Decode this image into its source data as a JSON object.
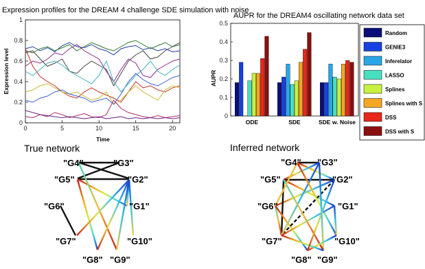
{
  "chart_data": [
    {
      "type": "line",
      "title": "Expression profiles for the DREAM 4 challenge SDE simulation with noise",
      "xlabel": "Time",
      "ylabel": "Expression level",
      "xlim": [
        0,
        21
      ],
      "ylim": [
        0,
        1
      ],
      "x_ticks": [
        "0",
        "5",
        "10",
        "15",
        "20"
      ],
      "y_ticks": [
        "0",
        "0.2",
        "0.4",
        "0.6",
        "0.8",
        "1"
      ],
      "x": [
        0,
        1,
        2,
        3,
        4,
        5,
        6,
        7,
        8,
        9,
        10,
        11,
        12,
        13,
        14,
        15,
        16,
        17,
        18,
        19,
        20,
        21
      ],
      "series": [
        {
          "color": "#1f3b9f",
          "values": [
            0.72,
            0.74,
            0.7,
            0.73,
            0.69,
            0.75,
            0.78,
            0.74,
            0.73,
            0.76,
            0.72,
            0.7,
            0.66,
            0.72,
            0.74,
            0.75,
            0.71,
            0.73,
            0.7,
            0.72,
            0.69,
            0.7
          ]
        },
        {
          "color": "#2a7a2a",
          "values": [
            0.7,
            0.68,
            0.72,
            0.74,
            0.7,
            0.73,
            0.76,
            0.7,
            0.74,
            0.78,
            0.75,
            0.72,
            0.7,
            0.74,
            0.78,
            0.8,
            0.76,
            0.72,
            0.75,
            0.78,
            0.74,
            0.76
          ]
        },
        {
          "color": "#444444",
          "values": [
            0.68,
            0.7,
            0.62,
            0.55,
            0.58,
            0.62,
            0.5,
            0.48,
            0.55,
            0.6,
            0.56,
            0.52,
            0.36,
            0.48,
            0.6,
            0.66,
            0.7,
            0.62,
            0.64,
            0.7,
            0.74,
            0.78
          ]
        },
        {
          "color": "#8a2a8a",
          "values": [
            0.55,
            0.6,
            0.58,
            0.62,
            0.68,
            0.66,
            0.72,
            0.76,
            0.7,
            0.66,
            0.62,
            0.5,
            0.4,
            0.52,
            0.62,
            0.58,
            0.46,
            0.44,
            0.52,
            0.56,
            0.6,
            0.62
          ]
        },
        {
          "color": "#c03020",
          "values": [
            0.72,
            0.55,
            0.45,
            0.4,
            0.36,
            0.3,
            0.26,
            0.24,
            0.3,
            0.34,
            0.3,
            0.27,
            0.24,
            0.2,
            0.3,
            0.4,
            0.34,
            0.36,
            0.32,
            0.3,
            0.34,
            0.36
          ]
        },
        {
          "color": "#c9b52e",
          "values": [
            0.3,
            0.32,
            0.36,
            0.38,
            0.34,
            0.3,
            0.28,
            0.3,
            0.26,
            0.22,
            0.24,
            0.3,
            0.18,
            0.22,
            0.3,
            0.36,
            0.3,
            0.26,
            0.22,
            0.32,
            0.36,
            0.34
          ]
        },
        {
          "color": "#3a5fd0",
          "values": [
            0.22,
            0.2,
            0.24,
            0.26,
            0.3,
            0.32,
            0.28,
            0.26,
            0.24,
            0.2,
            0.22,
            0.24,
            0.18,
            0.28,
            0.4,
            0.48,
            0.42,
            0.38,
            0.36,
            0.4,
            0.44,
            0.46
          ]
        },
        {
          "color": "#40b0c0",
          "values": [
            0.5,
            0.46,
            0.52,
            0.58,
            0.6,
            0.56,
            0.5,
            0.46,
            0.42,
            0.38,
            0.46,
            0.6,
            0.4,
            0.3,
            0.38,
            0.46,
            0.52,
            0.6,
            0.5,
            0.46,
            0.52,
            0.56
          ]
        },
        {
          "color": "#b02a6a",
          "values": [
            0.06,
            0.05,
            0.08,
            0.06,
            0.1,
            0.08,
            0.05,
            0.07,
            0.09,
            0.06,
            0.05,
            0.08,
            0.22,
            0.14,
            0.1,
            0.08,
            0.06,
            0.05,
            0.07,
            0.05,
            0.06,
            0.07
          ]
        },
        {
          "color": "#6a2080",
          "values": [
            0.12,
            0.1,
            0.08,
            0.07,
            0.06,
            0.05,
            0.06,
            0.05,
            0.04,
            0.05,
            0.06,
            0.04,
            0.05,
            0.06,
            0.04,
            0.05,
            0.04,
            0.05,
            0.04,
            0.05,
            0.04,
            0.05
          ]
        }
      ]
    },
    {
      "type": "bar",
      "title": "AUPR for the DREAM4 oscillating network data set",
      "xlabel": "",
      "ylabel": "AUPR",
      "ylim": [
        0,
        0.5
      ],
      "y_ticks": [
        "0",
        "0.1",
        "0.2",
        "0.3",
        "0.4",
        "0.5"
      ],
      "categories": [
        "ODE",
        "SDE",
        "SDE w. Noise"
      ],
      "legend_position": "right",
      "series": [
        {
          "name": "Random",
          "color": "#0a0f7a",
          "values": [
            0.18,
            0.18,
            0.18
          ]
        },
        {
          "name": "GENIE3",
          "color": "#1740e0",
          "values": [
            0.29,
            0.21,
            0.18
          ]
        },
        {
          "name": "Inferelator",
          "color": "#2aa6e8",
          "values": [
            0.0,
            0.28,
            0.28
          ]
        },
        {
          "name": "LASSO",
          "color": "#46e0c0",
          "values": [
            0.19,
            0.17,
            0.21
          ]
        },
        {
          "name": "Splines",
          "color": "#c8f040",
          "values": [
            0.23,
            0.19,
            0.2
          ]
        },
        {
          "name": "Splines with S",
          "color": "#f5a623",
          "values": [
            0.23,
            0.29,
            0.28
          ]
        },
        {
          "name": "DSS",
          "color": "#e8281a",
          "values": [
            0.31,
            0.36,
            0.3
          ]
        },
        {
          "name": "DSS with S",
          "color": "#8a0f0f",
          "values": [
            0.43,
            0.45,
            0.29
          ]
        }
      ]
    }
  ],
  "networks": {
    "true_title": "True network",
    "inferred_title": "Inferred network",
    "node_labels": [
      "\"G4\"",
      "\"G3\"",
      "\"G5\"",
      "\"G2\"",
      "\"G6\"",
      "\"G1\"",
      "\"G7\"",
      "\"G10\"",
      "\"G8\"",
      "\"G9\""
    ]
  }
}
